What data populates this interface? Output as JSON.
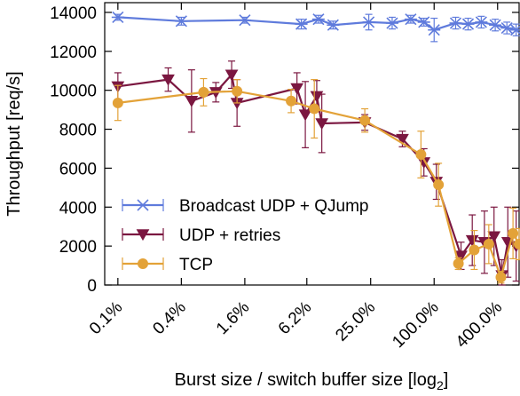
{
  "chart_data": {
    "type": "line",
    "xlabel": "Burst size / switch buffer size [log",
    "xlabel_sub": "2",
    "xlabel_suffix": "]",
    "ylabel": "Throughput [req/s]",
    "x_scale": "log2",
    "xlim": [
      0.075,
      640
    ],
    "ylim": [
      0,
      14500
    ],
    "x_ticks": [
      0.1,
      0.4,
      1.6,
      6.2,
      25.0,
      100.0,
      400.0
    ],
    "x_tick_labels": [
      "0.1%",
      "0.4%",
      "1.6%",
      "6.2%",
      "25.0%",
      "100.0%",
      "400.0%"
    ],
    "y_ticks": [
      0,
      2000,
      4000,
      6000,
      8000,
      10000,
      12000,
      14000
    ],
    "y_tick_labels": [
      "0",
      "2000",
      "4000",
      "6000",
      "8000",
      "10000",
      "12000",
      "14000"
    ],
    "grid": false,
    "legend_position": "bottom-left",
    "series": [
      {
        "name": "Broadcast UDP + QJump",
        "color": "#5f7bdc",
        "marker": "x",
        "points": [
          {
            "x": 0.1,
            "y": 13750,
            "err": 150
          },
          {
            "x": 0.4,
            "y": 13550,
            "err": 200
          },
          {
            "x": 1.6,
            "y": 13600,
            "err": 150
          },
          {
            "x": 5.5,
            "y": 13400,
            "err": 250
          },
          {
            "x": 8.0,
            "y": 13650,
            "err": 200
          },
          {
            "x": 11.0,
            "y": 13350,
            "err": 200
          },
          {
            "x": 24.0,
            "y": 13500,
            "err": 400
          },
          {
            "x": 40.0,
            "y": 13450,
            "err": 300
          },
          {
            "x": 60.0,
            "y": 13650,
            "err": 200
          },
          {
            "x": 80.0,
            "y": 13500,
            "err": 200
          },
          {
            "x": 100.0,
            "y": 13100,
            "err": 600
          },
          {
            "x": 160.0,
            "y": 13450,
            "err": 300
          },
          {
            "x": 210.0,
            "y": 13400,
            "err": 300
          },
          {
            "x": 280.0,
            "y": 13500,
            "err": 300
          },
          {
            "x": 380.0,
            "y": 13350,
            "err": 300
          },
          {
            "x": 490.0,
            "y": 13200,
            "err": 300
          },
          {
            "x": 600.0,
            "y": 13100,
            "err": 300
          }
        ]
      },
      {
        "name": "UDP + retries",
        "color": "#7b1740",
        "marker": "triangle-down",
        "points": [
          {
            "x": 0.1,
            "y": 10200,
            "err": 700
          },
          {
            "x": 0.3,
            "y": 10550,
            "err": 600
          },
          {
            "x": 0.5,
            "y": 9450,
            "err": 1600
          },
          {
            "x": 0.85,
            "y": 9900,
            "err": 500
          },
          {
            "x": 1.2,
            "y": 10800,
            "err": 700
          },
          {
            "x": 1.35,
            "y": 9350,
            "err": 1200
          },
          {
            "x": 5.0,
            "y": 10100,
            "err": 800
          },
          {
            "x": 6.0,
            "y": 8750,
            "err": 1700
          },
          {
            "x": 7.7,
            "y": 9700,
            "err": 800
          },
          {
            "x": 8.6,
            "y": 8300,
            "err": 1500
          },
          {
            "x": 22.0,
            "y": 8350,
            "err": 400
          },
          {
            "x": 50.0,
            "y": 7500,
            "err": 400
          },
          {
            "x": 80.0,
            "y": 6300,
            "err": 700
          },
          {
            "x": 105.0,
            "y": 5300,
            "err": 900
          },
          {
            "x": 180.0,
            "y": 1500,
            "err": 700
          },
          {
            "x": 230.0,
            "y": 2300,
            "err": 1300
          },
          {
            "x": 300.0,
            "y": 2200,
            "err": 1600
          },
          {
            "x": 370.0,
            "y": 2500,
            "err": 1500
          },
          {
            "x": 440.0,
            "y": 500,
            "err": 800
          },
          {
            "x": 500.0,
            "y": 2200,
            "err": 1800
          },
          {
            "x": 600.0,
            "y": 2000,
            "err": 1800
          }
        ]
      },
      {
        "name": "TCP",
        "color": "#e3a238",
        "marker": "circle",
        "points": [
          {
            "x": 0.1,
            "y": 9350,
            "err": 900
          },
          {
            "x": 0.65,
            "y": 9900,
            "err": 700
          },
          {
            "x": 1.35,
            "y": 9950,
            "err": 600
          },
          {
            "x": 4.4,
            "y": 9450,
            "err": 600
          },
          {
            "x": 7.3,
            "y": 9050,
            "err": 1500
          },
          {
            "x": 22.0,
            "y": 8450,
            "err": 600
          },
          {
            "x": 75.0,
            "y": 6700,
            "err": 1200
          },
          {
            "x": 110.0,
            "y": 5150,
            "err": 1100
          },
          {
            "x": 170.0,
            "y": 1100,
            "err": 300
          },
          {
            "x": 240.0,
            "y": 1800,
            "err": 1000
          },
          {
            "x": 330.0,
            "y": 2100,
            "err": 1000
          },
          {
            "x": 430.0,
            "y": 400,
            "err": 300
          },
          {
            "x": 560.0,
            "y": 2650,
            "err": 1300
          },
          {
            "x": 640.0,
            "y": 2100,
            "err": 800
          }
        ]
      }
    ]
  }
}
